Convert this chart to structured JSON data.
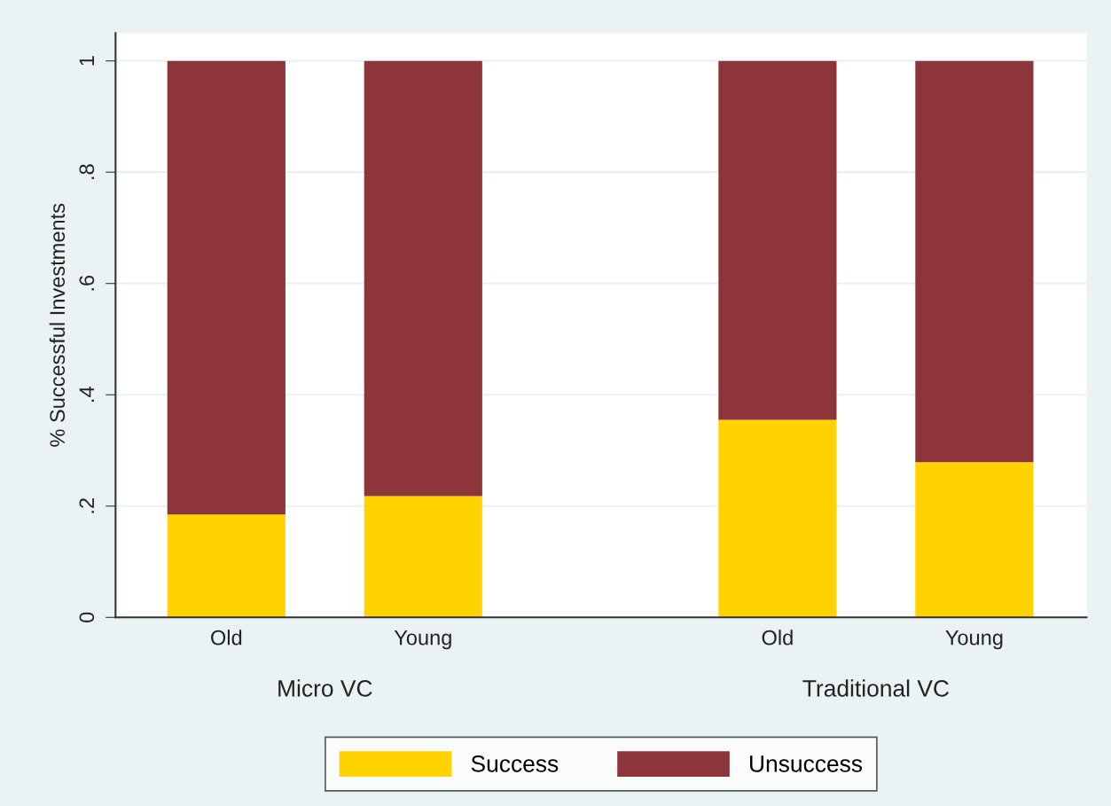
{
  "chart_data": {
    "type": "bar",
    "stacked": true,
    "ylabel": "% Successful Investments",
    "categories": [
      "Old",
      "Young",
      "Old",
      "Young"
    ],
    "annotations": [
      "Micro VC",
      "Traditional VC"
    ],
    "series": [
      {
        "name": "Success",
        "color": "#ffd200",
        "values": [
          0.185,
          0.218,
          0.355,
          0.279
        ]
      },
      {
        "name": "Unsuccess",
        "color": "#8e353b",
        "values": [
          0.815,
          0.782,
          0.645,
          0.721
        ]
      }
    ],
    "ylim": [
      0,
      1.05
    ],
    "yticks": [
      {
        "value": 0,
        "label": "0"
      },
      {
        "value": 0.2,
        "label": ".2"
      },
      {
        "value": 0.4,
        "label": ".4"
      },
      {
        "value": 0.6,
        "label": ".6"
      },
      {
        "value": 0.8,
        "label": ".8"
      },
      {
        "value": 1,
        "label": "1"
      }
    ],
    "grid": "y",
    "legend": "bottom"
  }
}
